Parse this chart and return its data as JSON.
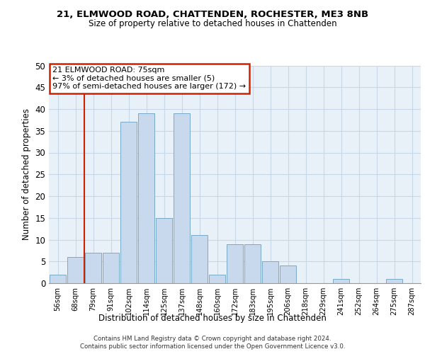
{
  "title1": "21, ELMWOOD ROAD, CHATTENDEN, ROCHESTER, ME3 8NB",
  "title2": "Size of property relative to detached houses in Chattenden",
  "xlabel": "Distribution of detached houses by size in Chattenden",
  "ylabel": "Number of detached properties",
  "bar_labels": [
    "56sqm",
    "68sqm",
    "79sqm",
    "91sqm",
    "102sqm",
    "114sqm",
    "125sqm",
    "137sqm",
    "148sqm",
    "160sqm",
    "172sqm",
    "183sqm",
    "195sqm",
    "206sqm",
    "218sqm",
    "229sqm",
    "241sqm",
    "252sqm",
    "264sqm",
    "275sqm",
    "287sqm"
  ],
  "bar_values": [
    2,
    6,
    7,
    7,
    37,
    39,
    15,
    39,
    11,
    2,
    9,
    9,
    5,
    4,
    0,
    0,
    1,
    0,
    0,
    1,
    0
  ],
  "bar_color": "#c9d9ed",
  "bar_edge_color": "#7aaac8",
  "grid_color": "#c8d8e8",
  "background_color": "#e8f0f8",
  "annotation_text": "21 ELMWOOD ROAD: 75sqm\n← 3% of detached houses are smaller (5)\n97% of semi-detached houses are larger (172) →",
  "annotation_box_facecolor": "white",
  "annotation_box_edgecolor": "#cc2200",
  "red_line_color": "#cc2200",
  "red_line_x": 1.5,
  "footer1": "Contains HM Land Registry data © Crown copyright and database right 2024.",
  "footer2": "Contains public sector information licensed under the Open Government Licence v3.0.",
  "ylim": [
    0,
    50
  ],
  "yticks": [
    0,
    5,
    10,
    15,
    20,
    25,
    30,
    35,
    40,
    45,
    50
  ]
}
